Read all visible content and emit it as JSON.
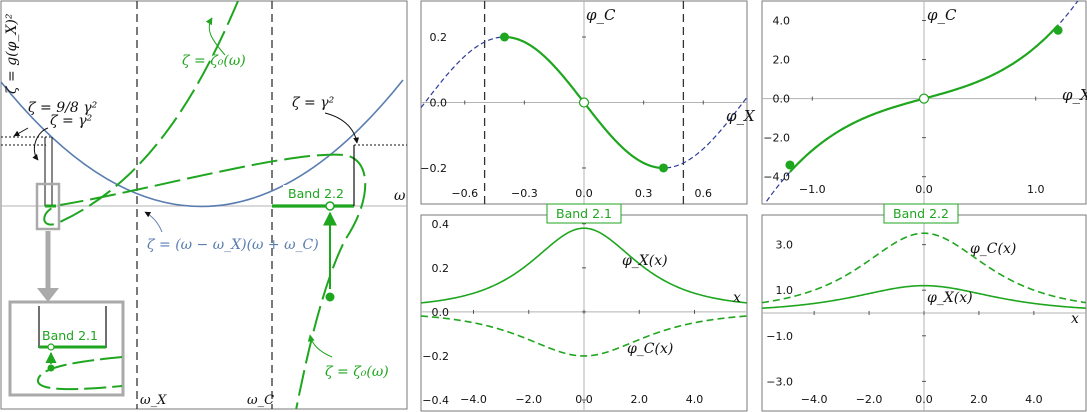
{
  "colors": {
    "green": "#1fa61f",
    "blue_curve": "#5a7db0",
    "dashed_blue": "#2b3c9a",
    "vline": "#333333",
    "axis": "#b3b3b3",
    "frame": "#7a7a7a"
  },
  "left_panel": {
    "ylabel": "ζ = g(φ_X)²",
    "omega_label": "ω",
    "omega_X_label": "ω_X",
    "omega_C_label": "ω_C",
    "label_98gamma2": "ζ = 9/8 γ²",
    "label_gamma2_left": "ζ = γ²",
    "label_gamma2_right": "ζ = γ²",
    "label_zeta0_top": "ζ = ζ₀(ω)",
    "label_zeta0_bottom": "ζ = ζ₀(ω)",
    "label_parabola": "ζ = (ω − ω_X)(ω + ω_C)",
    "band_22": "Band 2.2",
    "band_21": "Band 2.1"
  },
  "chart_data": [
    {
      "id": "phase-portrait-band-21",
      "type": "line",
      "xlabel": "φ_X",
      "ylabel": "φ_C",
      "x_ticks": [
        -0.6,
        -0.3,
        0.0,
        0.3,
        0.6
      ],
      "x_tick_labels": [
        "−0.6",
        "−0.3",
        "0.0",
        "0.3",
        "0.6"
      ],
      "y_ticks": [
        0.2,
        0.0,
        -0.2
      ],
      "y_tick_labels": [
        "0.2",
        "0.0",
        "−0.2"
      ],
      "xlim": [
        -0.82,
        0.82
      ],
      "ylim": [
        -0.31,
        0.31
      ],
      "vlines": [
        -0.5,
        0.5
      ],
      "series": [
        {
          "style": "dashed-blue",
          "x_range": [
            -0.82,
            0.82
          ]
        },
        {
          "style": "solid-green",
          "x_range": [
            -0.4,
            0.4
          ]
        }
      ],
      "points": [
        {
          "x": -0.4,
          "y": 0.2,
          "kind": "filled"
        },
        {
          "x": 0.4,
          "y": -0.2,
          "kind": "filled"
        },
        {
          "x": 0.0,
          "y": 0.0,
          "kind": "open"
        }
      ]
    },
    {
      "id": "phase-portrait-band-22",
      "type": "line",
      "xlabel": "φ_X",
      "ylabel": "φ_C",
      "x_ticks": [
        -1.0,
        0.0,
        1.0
      ],
      "x_tick_labels": [
        "−1.0",
        "0.0",
        "1.0"
      ],
      "y_ticks": [
        4.0,
        2.0,
        0.0,
        -2.0,
        -4.0
      ],
      "y_tick_labels": [
        "4.0",
        "2.0",
        "0.0",
        "−2.0",
        "−4.0"
      ],
      "xlim": [
        -1.45,
        1.45
      ],
      "ylim": [
        -5.4,
        5.0
      ],
      "series": [
        {
          "style": "dashed-blue",
          "x_range": [
            -1.45,
            1.45
          ]
        },
        {
          "style": "solid-green",
          "x_range": [
            -1.2,
            1.2
          ]
        }
      ],
      "points": [
        {
          "x": -1.2,
          "y": -3.4,
          "kind": "filled"
        },
        {
          "x": 1.2,
          "y": 3.5,
          "kind": "filled"
        },
        {
          "x": 0.0,
          "y": 0.0,
          "kind": "open"
        }
      ]
    },
    {
      "id": "profiles-band-21",
      "type": "line",
      "title": "Band 2.1",
      "xlabel": "x",
      "x_ticks": [
        -4.0,
        -2.0,
        0.0,
        2.0,
        4.0
      ],
      "x_tick_labels": [
        "−4.0",
        "−2.0",
        "0.0",
        "2.0",
        "4.0"
      ],
      "y_ticks": [
        0.4,
        0.2,
        0.0,
        -0.2,
        -0.4
      ],
      "y_tick_labels": [
        "0.4",
        "0.2",
        "0.0",
        "−0.2",
        "−0.4"
      ],
      "xlim": [
        -5.9,
        5.9
      ],
      "ylim": [
        -0.45,
        0.44
      ],
      "series": [
        {
          "name": "φ_X(x)",
          "style": "solid",
          "peak": 0.38,
          "tail_ref": 0.02
        },
        {
          "name": "φ_C(x)",
          "style": "dashed",
          "peak": -0.2
        }
      ]
    },
    {
      "id": "profiles-band-22",
      "type": "line",
      "title": "Band 2.2",
      "xlabel": "x",
      "x_ticks": [
        -4.0,
        -2.0,
        0.0,
        2.0,
        4.0
      ],
      "x_tick_labels": [
        "−4.0",
        "−2.0",
        "0.0",
        "2.0",
        "4.0"
      ],
      "y_ticks": [
        3.0,
        1.0,
        -1.0,
        -3.0
      ],
      "y_tick_labels": [
        "3.0",
        "1.0",
        "−1.0",
        "−3.0"
      ],
      "xlim": [
        -5.9,
        5.9
      ],
      "ylim": [
        -4.3,
        4.3
      ],
      "series": [
        {
          "name": "φ_C(x)",
          "style": "dashed",
          "peak": 3.5,
          "tail": 0.1
        },
        {
          "name": "φ_X(x)",
          "style": "solid",
          "peak": 1.2,
          "tail": 0.05
        }
      ]
    }
  ]
}
